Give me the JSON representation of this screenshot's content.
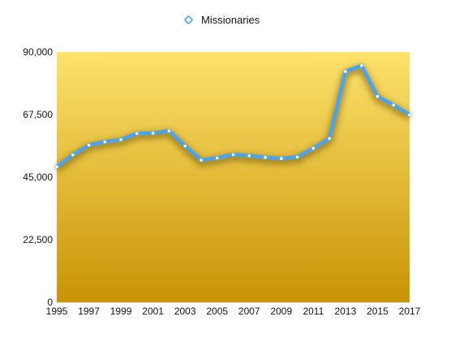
{
  "chart_data": {
    "type": "line",
    "legend": {
      "position": "top-center"
    },
    "grid": false,
    "x": [
      1995,
      1996,
      1997,
      1998,
      1999,
      2000,
      2001,
      2002,
      2003,
      2004,
      2005,
      2006,
      2007,
      2008,
      2009,
      2010,
      2011,
      2012,
      2013,
      2014,
      2015,
      2016,
      2017
    ],
    "x_tick_labels": [
      "1995",
      "1997",
      "1999",
      "2001",
      "2003",
      "2005",
      "2007",
      "2009",
      "2011",
      "2013",
      "2015",
      "2017"
    ],
    "xlim": [
      1995,
      2017
    ],
    "ylim": [
      0,
      90000
    ],
    "y_ticks": [
      0,
      22500,
      45000,
      67500,
      90000
    ],
    "y_tick_labels": [
      "0",
      "22,500",
      "45,000",
      "67,500",
      "90,000"
    ],
    "series": [
      {
        "name": "Missionaries",
        "color": "#4aa3f0",
        "values": [
          48700,
          53000,
          56500,
          57700,
          58500,
          60700,
          60800,
          61600,
          56200,
          51100,
          51900,
          53100,
          52700,
          52100,
          51700,
          52200,
          55400,
          58900,
          83000,
          85100,
          74000,
          70900,
          67400
        ]
      }
    ]
  },
  "colors": {
    "plot_top": "#fde26c",
    "plot_bottom": "#c99305",
    "line": "#4aa3f0",
    "marker_fill": "#ffffff",
    "shadow": "#5a4400"
  }
}
